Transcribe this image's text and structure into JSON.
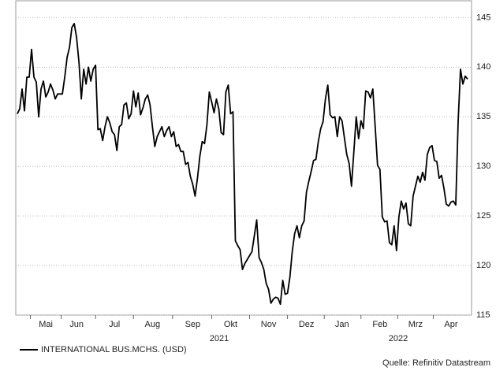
{
  "chart_data": {
    "type": "line",
    "categories": [
      null,
      null,
      null,
      null,
      null,
      null,
      null,
      null,
      null,
      null,
      null,
      null,
      "Mai",
      null,
      null,
      null,
      null,
      null,
      null,
      null,
      null,
      null,
      null,
      null,
      null,
      "Jun",
      null,
      null,
      null,
      null,
      null,
      null,
      null,
      null,
      null,
      null,
      null,
      null,
      null,
      null,
      null,
      "Jul",
      null,
      null,
      null,
      null,
      null,
      null,
      null,
      null,
      null,
      null,
      null,
      null,
      null,
      null,
      null,
      "Aug",
      null,
      null,
      null,
      null,
      null,
      null,
      null,
      null,
      null,
      null,
      null,
      null,
      null,
      null,
      null,
      null,
      "Sep",
      null,
      null,
      null,
      null,
      null,
      null,
      null,
      null,
      null,
      null,
      null,
      null,
      null,
      null,
      null,
      "Okt",
      null,
      null,
      null,
      null,
      null,
      null,
      null,
      null,
      null,
      null,
      null,
      null,
      null,
      null,
      null,
      "Nov",
      null,
      null,
      null,
      null,
      null,
      null,
      null,
      null,
      null,
      null,
      null,
      null,
      null,
      null,
      null,
      "Dez",
      null,
      null,
      null,
      null,
      null,
      null,
      null,
      null,
      null,
      null,
      null,
      null,
      null,
      null,
      "Jan",
      null,
      null,
      null,
      null,
      null,
      null,
      null,
      null,
      null,
      null,
      null,
      null,
      null,
      null,
      null,
      "Feb",
      null,
      null,
      null,
      null,
      null,
      null,
      null,
      null,
      null,
      null,
      null,
      null,
      null,
      null,
      "Mrz",
      null,
      null,
      null,
      null,
      null,
      null,
      null,
      null,
      null,
      null,
      null,
      null,
      null,
      null,
      "Apr",
      null,
      null,
      null,
      null,
      null,
      null,
      null
    ],
    "x_group_labels": [
      "2021",
      "2022"
    ],
    "series": [
      {
        "name": "INTERNATIONAL BUS.MCHS. (USD)",
        "color": "#000000",
        "values": [
          135.3,
          135.8,
          137.8,
          135.6,
          139,
          139,
          141.8,
          139,
          138.5,
          135,
          137.8,
          138.6,
          137,
          137.5,
          138.3,
          137.7,
          136.8,
          137.3,
          137.3,
          137.3,
          139,
          141,
          142,
          144,
          144.4,
          143,
          140.5,
          136.8,
          139.8,
          138.3,
          140,
          138.6,
          139.8,
          140.2,
          133.7,
          133.8,
          132.6,
          134,
          135,
          134.4,
          133.5,
          133.2,
          131.6,
          134,
          134.2,
          136.2,
          136.4,
          134.8,
          135.3,
          137.6,
          136,
          137.4,
          135.2,
          135.9,
          136.8,
          137.2,
          136.2,
          134,
          132,
          133,
          133.5,
          134,
          133,
          133.6,
          134,
          133,
          133.5,
          132,
          132.2,
          131.5,
          131.5,
          130.2,
          130.4,
          129,
          128.2,
          127,
          128.8,
          131,
          132.5,
          132.3,
          134.2,
          137.5,
          136.5,
          135.4,
          136.8,
          135.8,
          133.4,
          133.2,
          137.5,
          138.2,
          135.3,
          135.5,
          122.5,
          122,
          121.6,
          119.6,
          120.2,
          120.6,
          121,
          121.4,
          123,
          124.6,
          120.8,
          120.3,
          119.6,
          118.2,
          117.6,
          116.2,
          116.6,
          116.8,
          116.7,
          116.1,
          118.5,
          117.1,
          117.2,
          118.8,
          121.4,
          123.2,
          124,
          122.8,
          124,
          124.5,
          127.4,
          128.5,
          129.5,
          130.6,
          130.7,
          132.5,
          133.8,
          134.5,
          136.8,
          138.2,
          135.2,
          134.9,
          135,
          133,
          135,
          134.6,
          132.9,
          131.2,
          130.3,
          128,
          131.5,
          135,
          132.8,
          134.6,
          133.8,
          137.6,
          137.5,
          136.9,
          137.8,
          134,
          130.1,
          129.7,
          124.9,
          124.4,
          124.5,
          122.3,
          122.1,
          124,
          121.5,
          124.9,
          126.5,
          125.7,
          126.3,
          124.2,
          124,
          127,
          128,
          129,
          128.4,
          129.4,
          128.6,
          131.2,
          131.9,
          132.1,
          130.6,
          130.5,
          128.8,
          129.1,
          127.8,
          126.2,
          126,
          126.4,
          126.5,
          126.1,
          134.5,
          139.8,
          138.3,
          139.1,
          138.8
        ]
      }
    ],
    "ylim": [
      115,
      146.7
    ],
    "yticks": [
      115,
      120,
      125,
      130,
      135,
      140,
      145
    ],
    "grid": true,
    "y_axis_side": "right",
    "source": "Quelle: Refinitiv Datastream"
  }
}
